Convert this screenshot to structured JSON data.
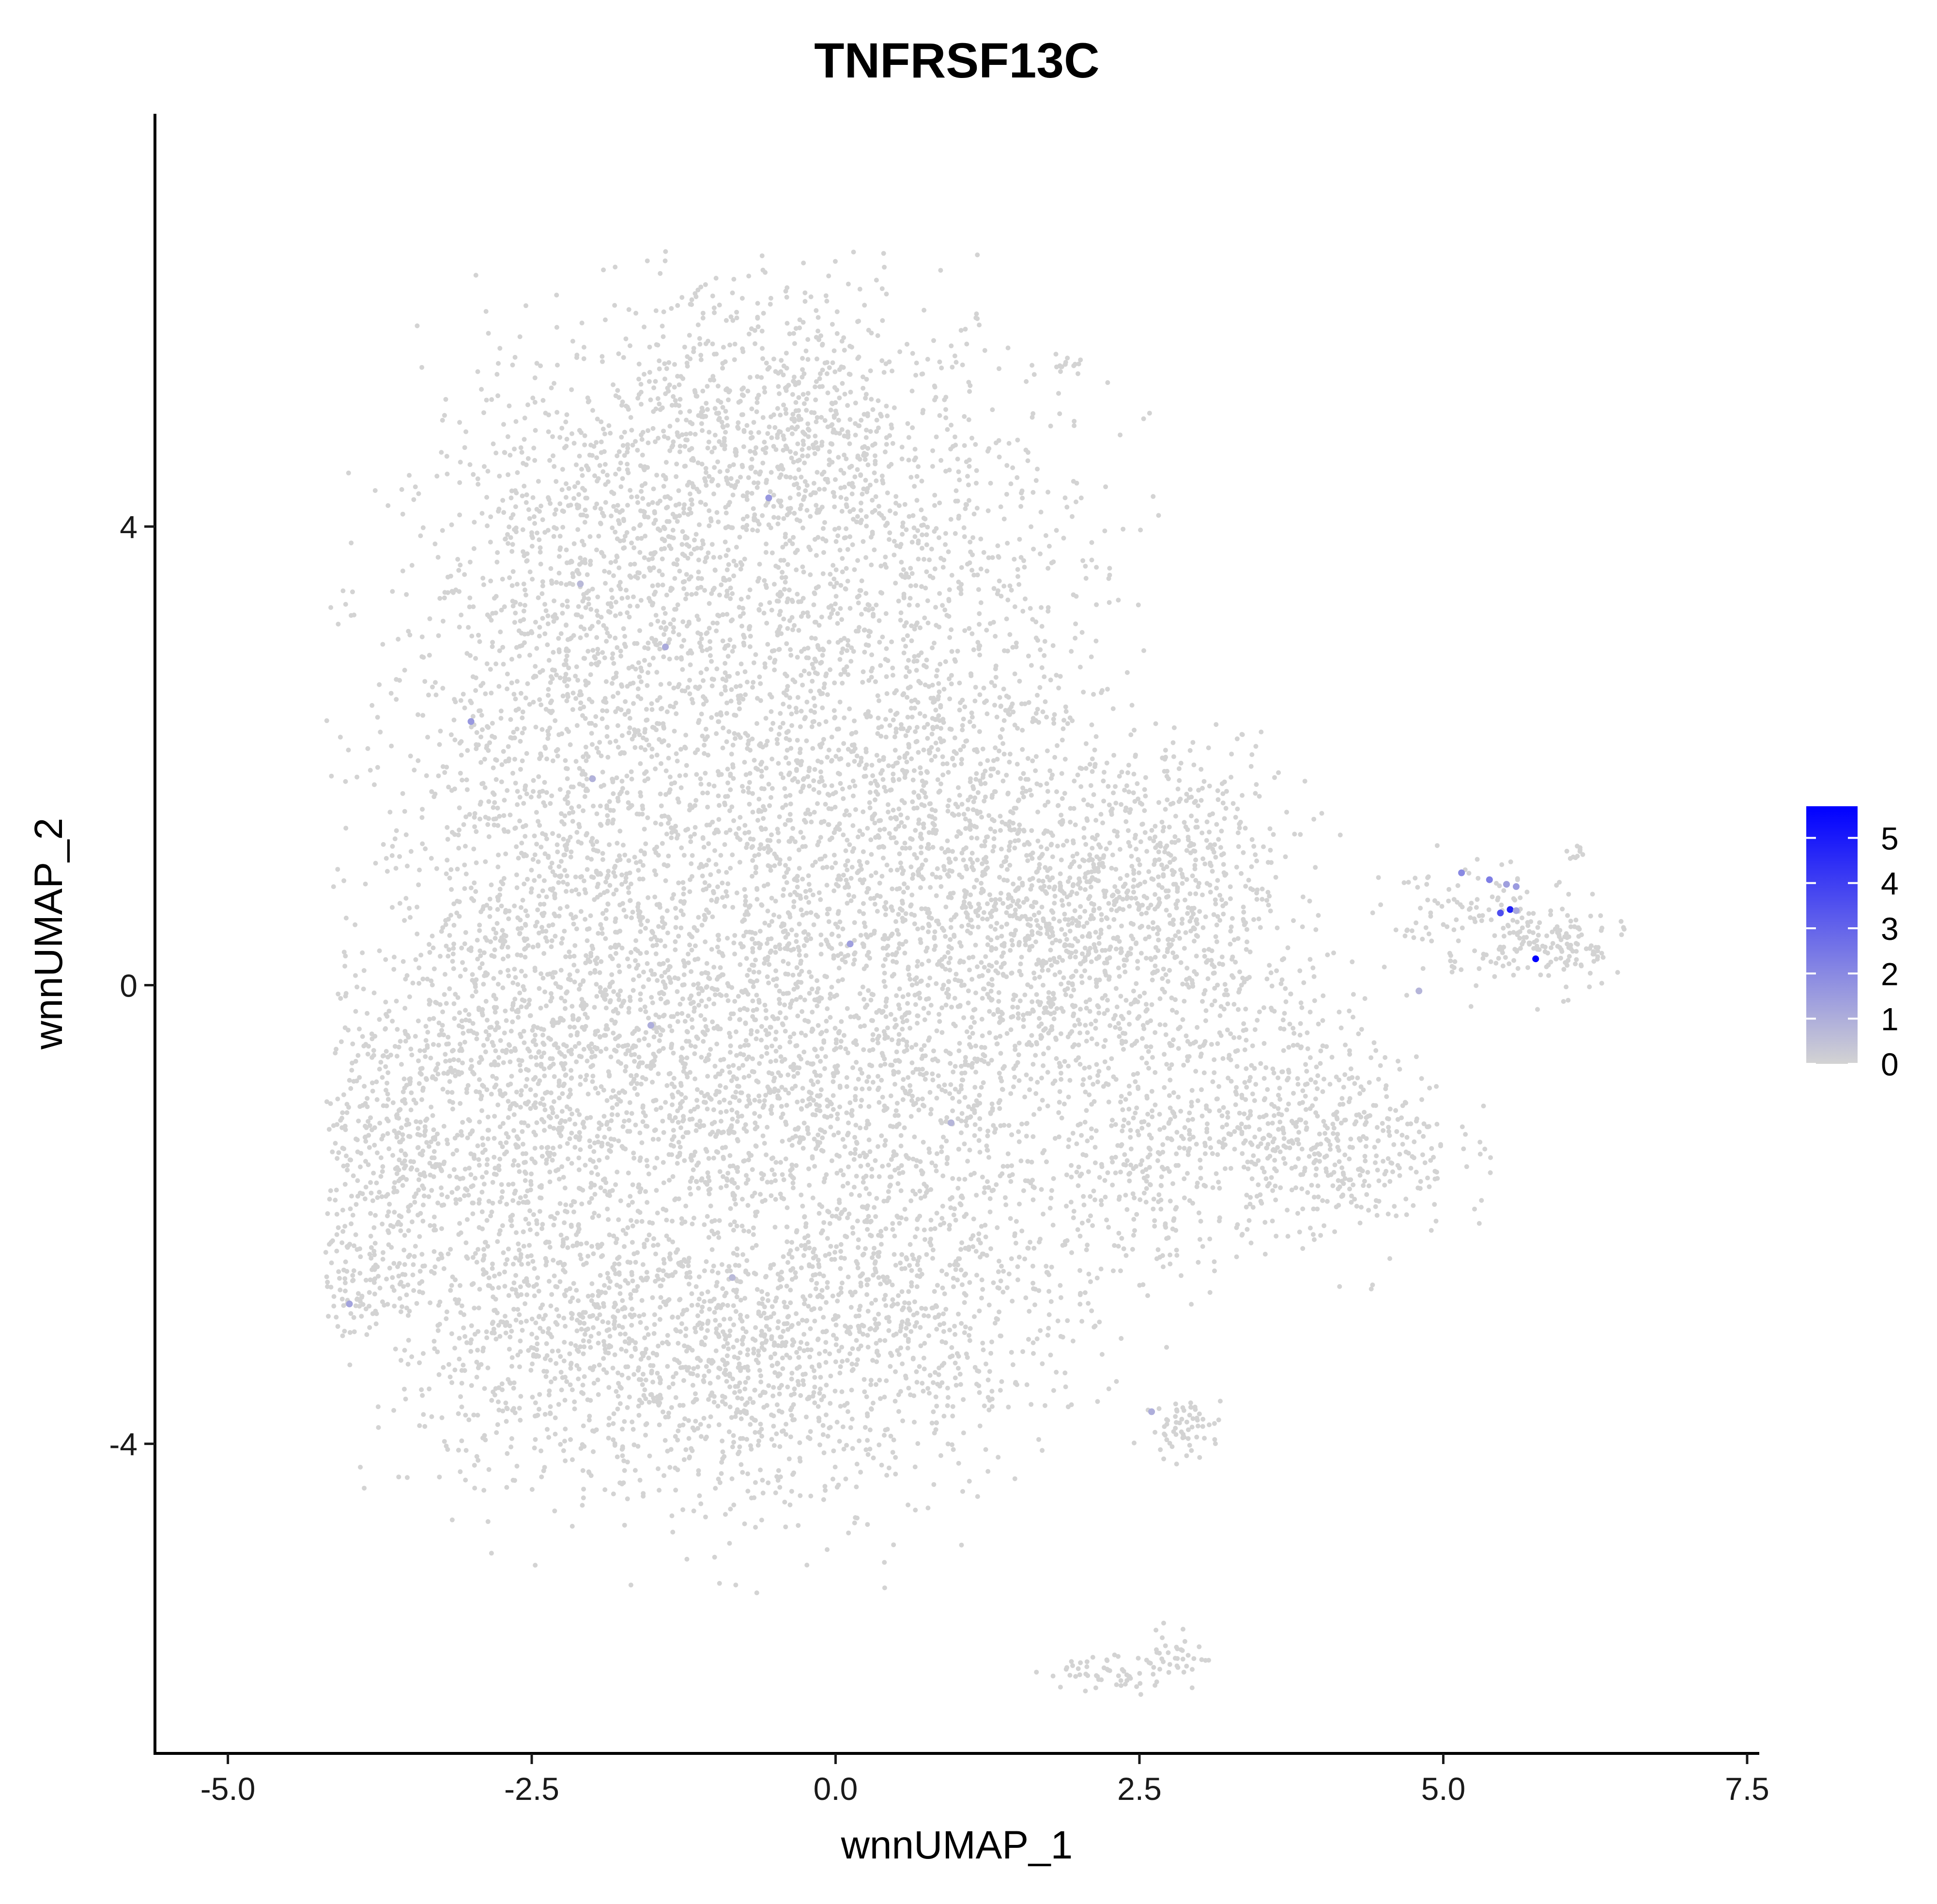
{
  "chart_data": {
    "type": "scatter",
    "title": "TNFRSF13C",
    "xlabel": "wnnUMAP_1",
    "ylabel": "wnnUMAP_2",
    "xlim": [
      -5.6,
      7.6
    ],
    "ylim": [
      -6.7,
      7.6
    ],
    "x_ticks": [
      -5.0,
      -2.5,
      0.0,
      2.5,
      5.0,
      7.5
    ],
    "x_tick_labels": [
      "-5.0",
      "-2.5",
      "0.0",
      "2.5",
      "5.0",
      "7.5"
    ],
    "y_ticks": [
      -4,
      0,
      4
    ],
    "y_tick_labels": [
      "-4",
      "0",
      "4"
    ],
    "grid": false,
    "legend": {
      "type": "colorbar",
      "placement": "right",
      "range": [
        0,
        5.7
      ],
      "ticks": [
        0,
        1,
        2,
        3,
        4,
        5
      ],
      "tick_labels": [
        "0",
        "1",
        "2",
        "3",
        "4",
        "5"
      ],
      "low_color": "#D3D3D3",
      "high_color": "#0000FF"
    },
    "background_color_value": 0,
    "highlighted_points": [
      {
        "x": 5.15,
        "y": 0.98,
        "value": 2.0
      },
      {
        "x": 5.38,
        "y": 0.92,
        "value": 2.3
      },
      {
        "x": 5.47,
        "y": 0.63,
        "value": 3.6
      },
      {
        "x": 5.55,
        "y": 0.66,
        "value": 4.8
      },
      {
        "x": 5.52,
        "y": 0.88,
        "value": 1.4
      },
      {
        "x": 5.6,
        "y": 0.86,
        "value": 1.5
      },
      {
        "x": 5.76,
        "y": 0.23,
        "value": 5.7
      },
      {
        "x": 5.6,
        "y": 0.65,
        "value": 1.2
      },
      {
        "x": -0.55,
        "y": 4.25,
        "value": 1.6
      },
      {
        "x": -3.0,
        "y": 2.3,
        "value": 1.6
      },
      {
        "x": -1.4,
        "y": 2.95,
        "value": 1.1
      },
      {
        "x": 0.12,
        "y": 0.36,
        "value": 1.4
      },
      {
        "x": -1.52,
        "y": -0.35,
        "value": 1.0
      },
      {
        "x": -4.0,
        "y": -2.78,
        "value": 1.3
      },
      {
        "x": 2.6,
        "y": -3.72,
        "value": 1.0
      },
      {
        "x": -2.0,
        "y": 1.8,
        "value": 0.9
      },
      {
        "x": 0.95,
        "y": -1.2,
        "value": 0.8
      },
      {
        "x": 4.8,
        "y": -0.05,
        "value": 0.8
      },
      {
        "x": -0.85,
        "y": -2.55,
        "value": 0.7
      },
      {
        "x": -2.1,
        "y": 3.5,
        "value": 0.7
      }
    ]
  }
}
